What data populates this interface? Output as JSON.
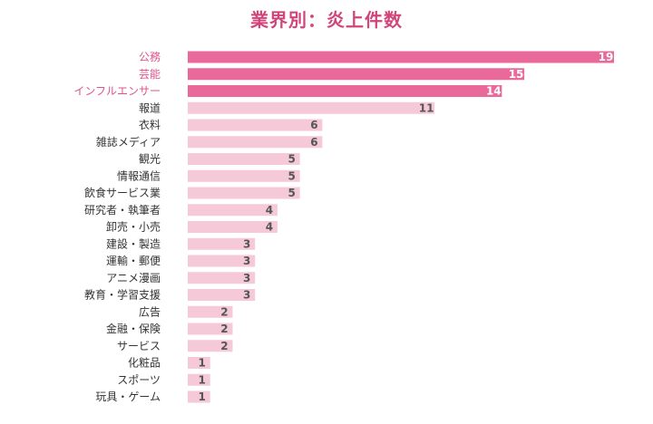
{
  "chart_data": {
    "type": "bar",
    "orientation": "horizontal",
    "title": "業界別：炎上件数",
    "xlabel": "",
    "ylabel": "",
    "grid": false,
    "xlim": [
      0,
      19
    ],
    "categories": [
      "公務",
      "芸能",
      "インフルエンサー",
      "報道",
      "衣料",
      "雑誌メディア",
      "観光",
      "情報通信",
      "飲食サービス業",
      "研究者・執筆者",
      "卸売・小売",
      "建設・製造",
      "運輸・郵便",
      "アニメ漫画",
      "教育・学習支援",
      "広告",
      "金融・保険",
      "サービス",
      "化粧品",
      "スポーツ",
      "玩具・ゲーム"
    ],
    "values": [
      19,
      15,
      14,
      11,
      6,
      6,
      5,
      5,
      5,
      4,
      4,
      3,
      3,
      3,
      3,
      2,
      2,
      2,
      1,
      1,
      1
    ],
    "highlighted_count": 3,
    "colors": {
      "highlight_bar": "#e8699a",
      "normal_bar": "#f6c9d8",
      "highlight_label": "#e0508a",
      "normal_label": "#333333",
      "value_on_highlight": "#ffffff",
      "value_on_normal": "#555555",
      "title": "#d0457a"
    }
  }
}
